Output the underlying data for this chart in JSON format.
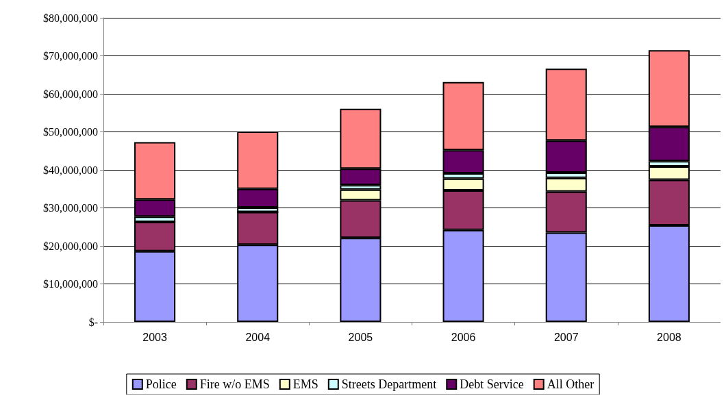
{
  "chart_data": {
    "type": "bar",
    "stacked": true,
    "categories": [
      "2003",
      "2004",
      "2005",
      "2006",
      "2007",
      "2008"
    ],
    "series": [
      {
        "name": "Police",
        "color": "#9999ff",
        "values": [
          18600000,
          20300000,
          22100000,
          24200000,
          23500000,
          25400000
        ]
      },
      {
        "name": "Fire w/o EMS",
        "color": "#993366",
        "values": [
          7700000,
          8600000,
          9900000,
          10400000,
          10800000,
          12000000
        ]
      },
      {
        "name": "EMS",
        "color": "#ffffcc",
        "values": [
          0,
          0,
          2800000,
          3100000,
          3600000,
          3500000
        ]
      },
      {
        "name": "Streets Department",
        "color": "#ccffff",
        "values": [
          1400000,
          1200000,
          1200000,
          1400000,
          1400000,
          1400000
        ]
      },
      {
        "name": "Debt Service",
        "color": "#660066",
        "values": [
          4500000,
          4900000,
          4300000,
          6100000,
          8400000,
          9000000
        ]
      },
      {
        "name": "All Other",
        "color": "#ff8080",
        "values": [
          15100000,
          15100000,
          15800000,
          17900000,
          18900000,
          20200000
        ]
      }
    ],
    "ylim": [
      0,
      80000000
    ],
    "yticks": [
      {
        "value": 0,
        "label": "$-"
      },
      {
        "value": 10000000,
        "label": "$10,000,000"
      },
      {
        "value": 20000000,
        "label": "$20,000,000"
      },
      {
        "value": 30000000,
        "label": "$30,000,000"
      },
      {
        "value": 40000000,
        "label": "$40,000,000"
      },
      {
        "value": 50000000,
        "label": "$50,000,000"
      },
      {
        "value": 60000000,
        "label": "$60,000,000"
      },
      {
        "value": 70000000,
        "label": "$70,000,000"
      },
      {
        "value": 80000000,
        "label": "$80,000,000"
      }
    ],
    "grid": "y",
    "legend": "bottom"
  }
}
